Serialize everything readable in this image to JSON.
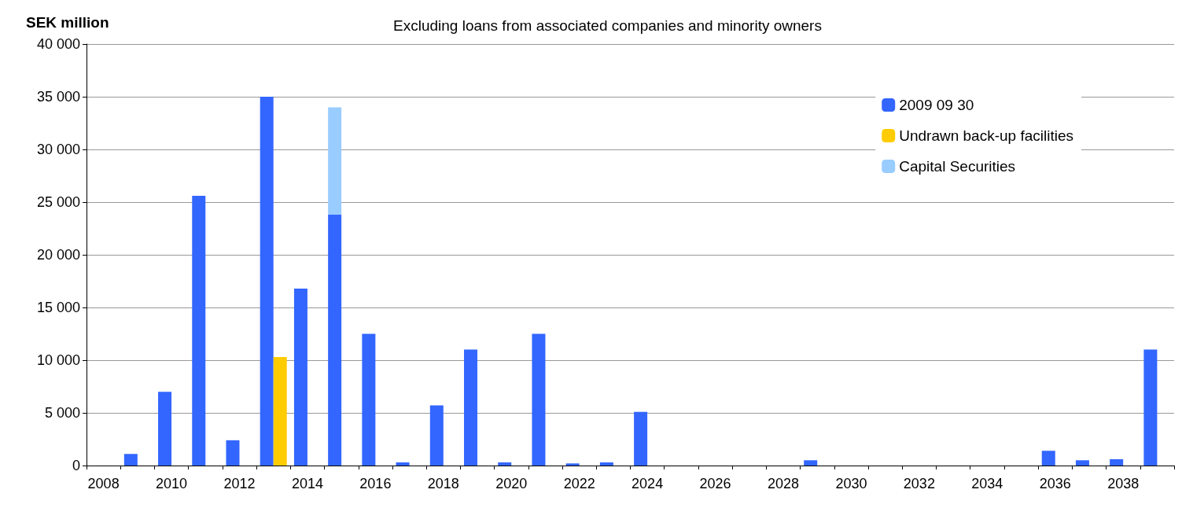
{
  "chart_data": {
    "type": "bar",
    "title": "Excluding loans from associated companies and minority owners",
    "ylabel": "SEK million",
    "categories": [
      "2008",
      null,
      "2010",
      null,
      "2012",
      null,
      "2014",
      null,
      "2016",
      null,
      "2018",
      null,
      "2020",
      null,
      "2022",
      null,
      "2024",
      null,
      "2026",
      null,
      "2028",
      null,
      "2030",
      null,
      "2032",
      null,
      "2034",
      null,
      "2036",
      null,
      "2038",
      null
    ],
    "series": [
      {
        "name": "2009 09 30",
        "color": "#3366ff",
        "values": [
          0,
          1100,
          7000,
          25600,
          2400,
          35000,
          16800,
          23800,
          12500,
          300,
          5700,
          11000,
          300,
          12500,
          200,
          300,
          5100,
          0,
          0,
          0,
          0,
          500,
          0,
          0,
          0,
          0,
          0,
          0,
          1400,
          500,
          600,
          11000
        ]
      },
      {
        "name": "Undrawn back-up facilities",
        "color": "#ffcc00",
        "values": [
          null,
          null,
          null,
          null,
          null,
          10300,
          null,
          null,
          null,
          null,
          null,
          null,
          null,
          null,
          null,
          null,
          null,
          null,
          null,
          null,
          null,
          null,
          null,
          null,
          null,
          null,
          null,
          null,
          null,
          null,
          null,
          null
        ]
      },
      {
        "name": "Capital Securities",
        "color": "#99ccff",
        "base": [
          null,
          null,
          null,
          null,
          null,
          null,
          null,
          23800,
          null,
          null,
          null,
          null,
          null,
          null,
          null,
          null,
          null,
          null,
          null,
          null,
          null,
          null,
          null,
          null,
          null,
          null,
          null,
          null,
          null,
          null,
          null,
          null
        ],
        "values": [
          null,
          null,
          null,
          null,
          null,
          null,
          null,
          10200,
          null,
          null,
          null,
          null,
          null,
          null,
          null,
          null,
          null,
          null,
          null,
          null,
          null,
          null,
          null,
          null,
          null,
          null,
          null,
          null,
          null,
          null,
          null,
          null
        ]
      }
    ],
    "ylim": [
      0,
      40000
    ],
    "yticks": [
      0,
      {
        "value": 5000,
        "label": "5 000"
      },
      {
        "value": 10000,
        "label": "10 000"
      },
      {
        "value": 15000,
        "label": "15 000"
      },
      {
        "value": 20000,
        "label": "20 000"
      },
      {
        "value": 25000,
        "label": "25 000"
      },
      {
        "value": 30000,
        "label": "30 000"
      },
      {
        "value": 35000,
        "label": "35 000"
      },
      {
        "value": 40000,
        "label": "40 000"
      }
    ],
    "grid": "y",
    "legend": "top right"
  }
}
